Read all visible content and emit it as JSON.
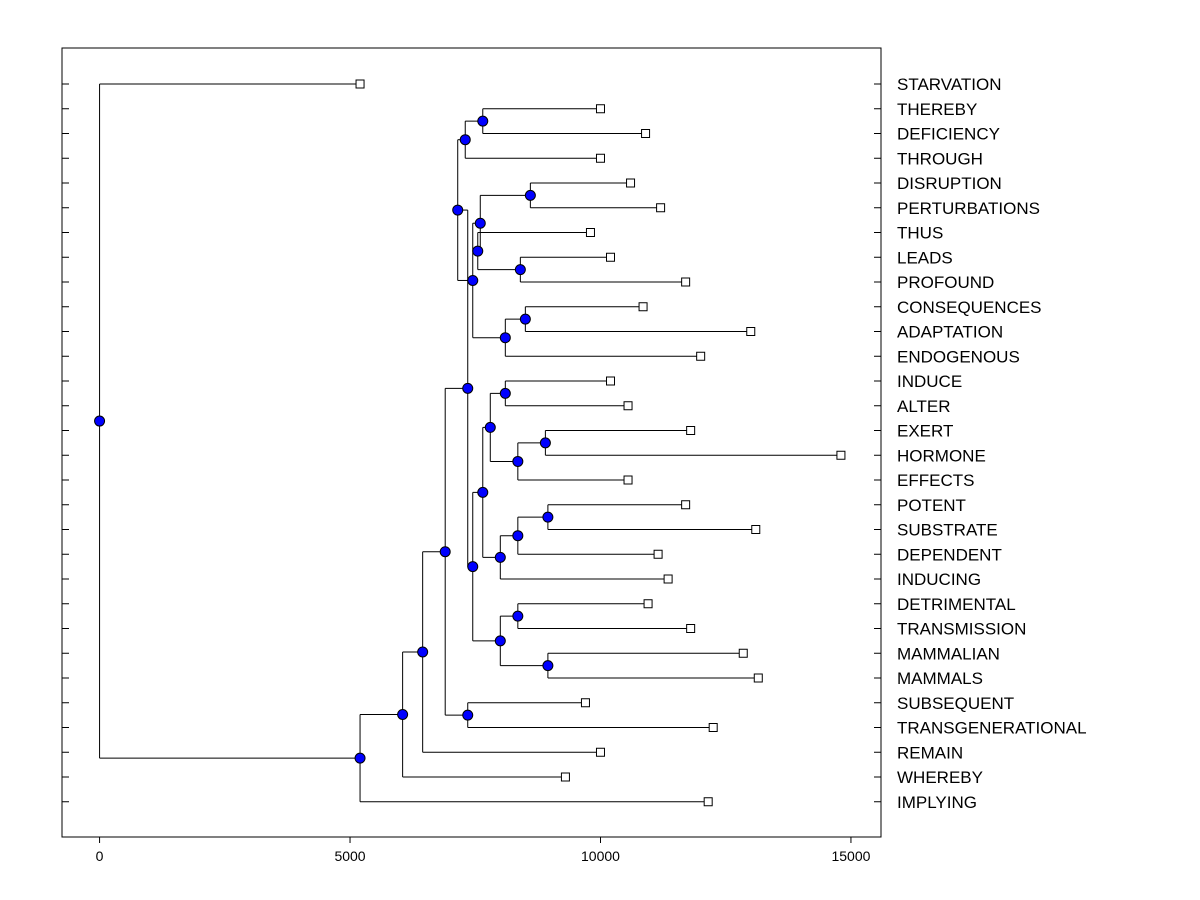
{
  "chart_data": {
    "type": "dendrogram",
    "title": "",
    "xlabel": "",
    "ylabel": "",
    "xlim": [
      -750,
      15600
    ],
    "xticks": [
      0,
      5000,
      10000,
      15000
    ],
    "xtick_labels": [
      "0",
      "5000",
      "10000",
      "15000"
    ],
    "colors": {
      "node": "#0000ff",
      "line": "#000000",
      "leaf_fill": "#ffffff"
    },
    "leaves": [
      {
        "label": "STARVATION",
        "x": 5200
      },
      {
        "label": "THEREBY",
        "x": 10000
      },
      {
        "label": "DEFICIENCY",
        "x": 10900
      },
      {
        "label": "THROUGH",
        "x": 10000
      },
      {
        "label": "DISRUPTION",
        "x": 10600
      },
      {
        "label": "PERTURBATIONS",
        "x": 11200
      },
      {
        "label": "THUS",
        "x": 9800
      },
      {
        "label": "LEADS",
        "x": 10200
      },
      {
        "label": "PROFOUND",
        "x": 11700
      },
      {
        "label": "CONSEQUENCES",
        "x": 10850
      },
      {
        "label": "ADAPTATION",
        "x": 13000
      },
      {
        "label": "ENDOGENOUS",
        "x": 12000
      },
      {
        "label": "INDUCE",
        "x": 10200
      },
      {
        "label": "ALTER",
        "x": 10550
      },
      {
        "label": "EXERT",
        "x": 11800
      },
      {
        "label": "HORMONE",
        "x": 14800
      },
      {
        "label": "EFFECTS",
        "x": 10550
      },
      {
        "label": "POTENT",
        "x": 11700
      },
      {
        "label": "SUBSTRATE",
        "x": 13100
      },
      {
        "label": "DEPENDENT",
        "x": 11150
      },
      {
        "label": "INDUCING",
        "x": 11350
      },
      {
        "label": "DETRIMENTAL",
        "x": 10950
      },
      {
        "label": "TRANSMISSION",
        "x": 11800
      },
      {
        "label": "MAMMALIAN",
        "x": 12850
      },
      {
        "label": "MAMMALS",
        "x": 13150
      },
      {
        "label": "SUBSEQUENT",
        "x": 9700
      },
      {
        "label": "TRANSGENERATIONAL",
        "x": 12250
      },
      {
        "label": "REMAIN",
        "x": 10000
      },
      {
        "label": "WHEREBY",
        "x": 9300
      },
      {
        "label": "IMPLYING",
        "x": 12150
      }
    ],
    "merges": [
      {
        "x": 7650,
        "children": [
          "L1",
          "L2"
        ]
      },
      {
        "x": 7300,
        "children": [
          "M0",
          "L3"
        ]
      },
      {
        "x": 8600,
        "children": [
          "L4",
          "L5"
        ]
      },
      {
        "x": 8400,
        "children": [
          "L7",
          "L8"
        ]
      },
      {
        "x": 7550,
        "children": [
          "L6",
          "M3"
        ]
      },
      {
        "x": 7600,
        "children": [
          "M2",
          "M4"
        ]
      },
      {
        "x": 8500,
        "children": [
          "L9",
          "L10"
        ]
      },
      {
        "x": 8100,
        "children": [
          "M6",
          "L11"
        ]
      },
      {
        "x": 7450,
        "children": [
          "M5",
          "M7"
        ]
      },
      {
        "x": 7150,
        "children": [
          "M1",
          "M8"
        ]
      },
      {
        "x": 8100,
        "children": [
          "L12",
          "L13"
        ]
      },
      {
        "x": 8900,
        "children": [
          "L14",
          "L15"
        ]
      },
      {
        "x": 8350,
        "children": [
          "M11",
          "L16"
        ]
      },
      {
        "x": 7800,
        "children": [
          "M10",
          "M12"
        ]
      },
      {
        "x": 8950,
        "children": [
          "L17",
          "L18"
        ]
      },
      {
        "x": 8350,
        "children": [
          "M14",
          "L19"
        ]
      },
      {
        "x": 8000,
        "children": [
          "M15",
          "L20"
        ]
      },
      {
        "x": 7650,
        "children": [
          "M13",
          "M16"
        ]
      },
      {
        "x": 8350,
        "children": [
          "L21",
          "L22"
        ]
      },
      {
        "x": 8950,
        "children": [
          "L23",
          "L24"
        ]
      },
      {
        "x": 8000,
        "children": [
          "M18",
          "M19"
        ]
      },
      {
        "x": 7450,
        "children": [
          "M17",
          "M20"
        ]
      },
      {
        "x": 7350,
        "children": [
          "M9",
          "M21"
        ]
      },
      {
        "x": 7350,
        "children": [
          "L25",
          "L26"
        ]
      },
      {
        "x": 6900,
        "children": [
          "M22",
          "M23"
        ]
      },
      {
        "x": 6450,
        "children": [
          "M24",
          "L27"
        ]
      },
      {
        "x": 6050,
        "children": [
          "M25",
          "L28"
        ]
      },
      {
        "x": 5200,
        "children": [
          "M26",
          "L29"
        ]
      },
      {
        "x": 0,
        "children": [
          "L0",
          "M27"
        ]
      }
    ]
  }
}
